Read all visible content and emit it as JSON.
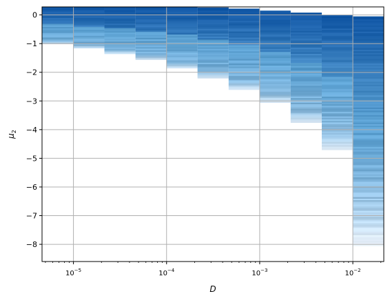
{
  "chart_data": {
    "type": "heatmap",
    "title": "",
    "xlabel": "D",
    "ylabel": "μ2",
    "xscale": "log",
    "xlim": [
      4.6e-06,
      0.0215
    ],
    "ylim": [
      -8.6,
      0.28
    ],
    "grid": true,
    "colormap": "Blues",
    "x_ticks": [
      {
        "value": 1e-05,
        "base": "10",
        "exp": "−5"
      },
      {
        "value": 0.0001,
        "base": "10",
        "exp": "−4"
      },
      {
        "value": 0.001,
        "base": "10",
        "exp": "−3"
      },
      {
        "value": 0.01,
        "base": "10",
        "exp": "−2"
      }
    ],
    "y_ticks": [
      0,
      -1,
      -2,
      -3,
      -4,
      -5,
      -6,
      -7,
      -8
    ],
    "y_tick_labels": [
      "0",
      "−1",
      "−2",
      "−3",
      "−4",
      "−5",
      "−6",
      "−7",
      "−8"
    ],
    "columns": [
      {
        "D_left": 4.6e-06,
        "D_right": 1e-05,
        "mu_top": 0.27,
        "mu_bottom": -1.0
      },
      {
        "D_left": 1e-05,
        "D_right": 2.15e-05,
        "mu_top": 0.27,
        "mu_bottom": -1.15
      },
      {
        "D_left": 2.15e-05,
        "D_right": 4.64e-05,
        "mu_top": 0.27,
        "mu_bottom": -1.35
      },
      {
        "D_left": 4.64e-05,
        "D_right": 0.0001,
        "mu_top": 0.27,
        "mu_bottom": -1.55
      },
      {
        "D_left": 0.0001,
        "D_right": 0.000215,
        "mu_top": 0.27,
        "mu_bottom": -1.85
      },
      {
        "D_left": 0.000215,
        "D_right": 0.000464,
        "mu_top": 0.26,
        "mu_bottom": -2.2
      },
      {
        "D_left": 0.000464,
        "D_right": 0.001,
        "mu_top": 0.22,
        "mu_bottom": -2.6
      },
      {
        "D_left": 0.001,
        "D_right": 0.00215,
        "mu_top": 0.15,
        "mu_bottom": -3.05
      },
      {
        "D_left": 0.00215,
        "D_right": 0.00464,
        "mu_top": 0.08,
        "mu_bottom": -3.75
      },
      {
        "D_left": 0.00464,
        "D_right": 0.01,
        "mu_top": 0.0,
        "mu_bottom": -4.7
      },
      {
        "D_left": 0.01,
        "D_right": 0.0215,
        "mu_top": -0.05,
        "mu_bottom": -8.05
      }
    ]
  }
}
